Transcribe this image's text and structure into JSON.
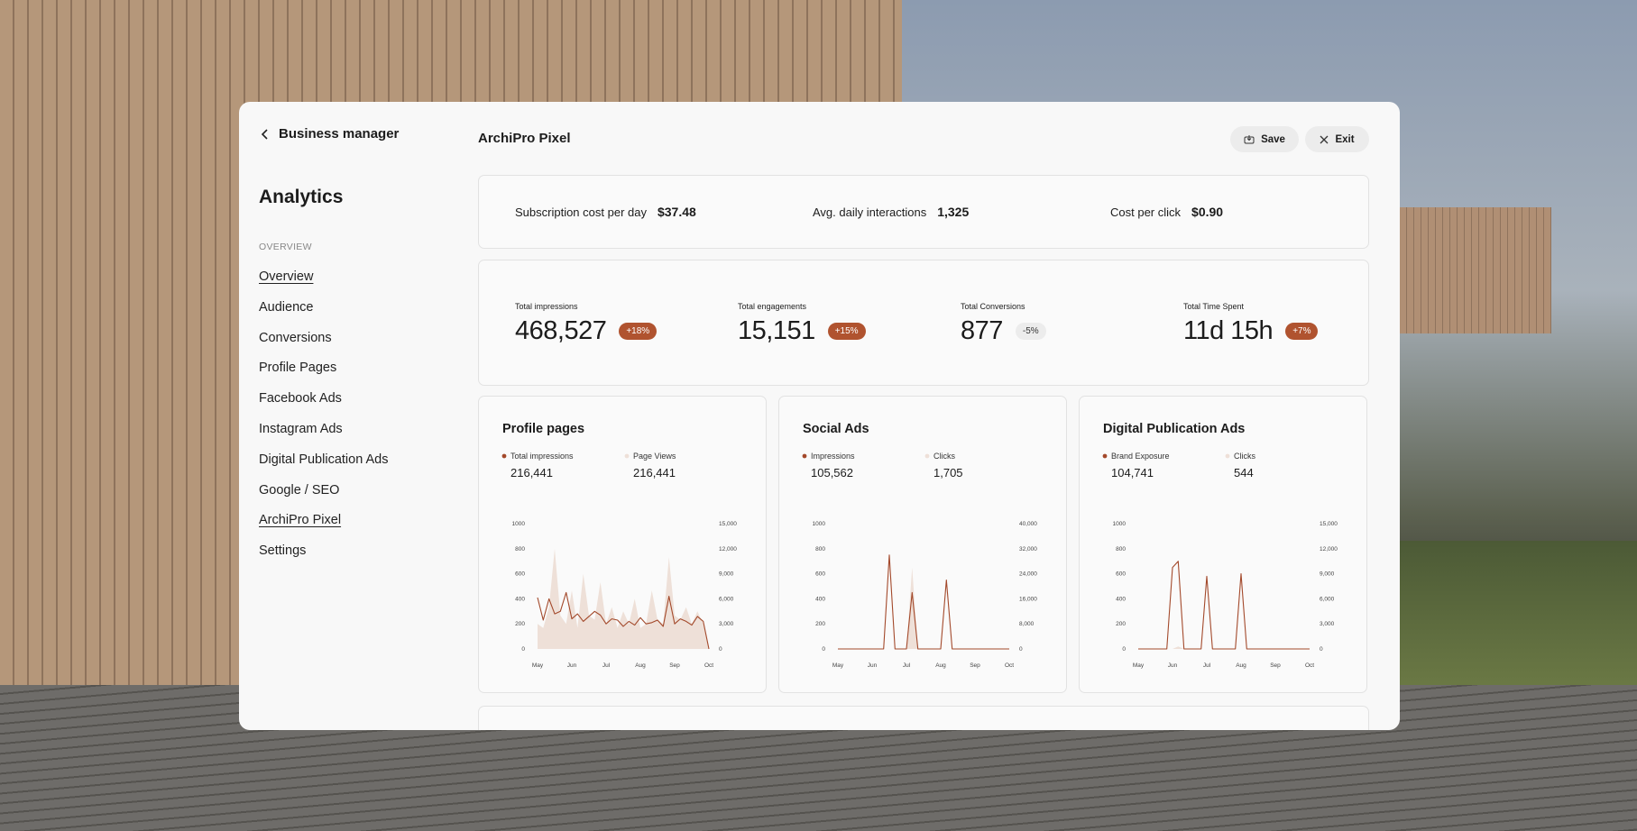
{
  "sidebar": {
    "back": "Business manager",
    "title": "Analytics",
    "section": "OVERVIEW",
    "nav": [
      {
        "label": "Overview",
        "underlined": true
      },
      {
        "label": "Audience",
        "underlined": false
      },
      {
        "label": "Conversions",
        "underlined": false
      },
      {
        "label": "Profile Pages",
        "underlined": false
      },
      {
        "label": "Facebook Ads",
        "underlined": false
      },
      {
        "label": "Instagram Ads",
        "underlined": false
      },
      {
        "label": "Digital Publication Ads",
        "underlined": false
      },
      {
        "label": "Google / SEO",
        "underlined": false
      },
      {
        "label": "ArchiPro Pixel",
        "underlined": true
      },
      {
        "label": "Settings",
        "underlined": false
      }
    ]
  },
  "header": {
    "title": "ArchiPro Pixel",
    "save": "Save",
    "exit": "Exit"
  },
  "stats": [
    {
      "label": "Subscription cost per day",
      "value": "$37.48"
    },
    {
      "label": "Avg. daily interactions",
      "value": "1,325"
    },
    {
      "label": "Cost per click",
      "value": "$0.90"
    }
  ],
  "kpis": [
    {
      "label": "Total impressions",
      "value": "468,527",
      "change": "+18%",
      "highlight": true
    },
    {
      "label": "Total engagements",
      "value": "15,151",
      "change": "+15%",
      "highlight": true
    },
    {
      "label": "Total Conversions",
      "value": "877",
      "change": "-5%",
      "highlight": false
    },
    {
      "label": "Total Time Spent",
      "value": "11d 15h",
      "change": "+7%",
      "highlight": true
    }
  ],
  "chart_data": [
    {
      "type": "line",
      "title": "Profile pages",
      "x": [
        0,
        5,
        10,
        15,
        20,
        25,
        30,
        35,
        40,
        45,
        50,
        55,
        60,
        65,
        70,
        75,
        80,
        85,
        90,
        95,
        100,
        105,
        110,
        115,
        120,
        125,
        130,
        135,
        140,
        145,
        150
      ],
      "xlim": [
        0,
        150
      ],
      "xticks": [
        {
          "value": 0,
          "label": "May"
        },
        {
          "value": 30,
          "label": "Jun"
        },
        {
          "value": 60,
          "label": "Jul"
        },
        {
          "value": 90,
          "label": "Aug"
        },
        {
          "value": 120,
          "label": "Sep"
        },
        {
          "value": 150,
          "label": "Oct"
        }
      ],
      "ylim": [
        0,
        1000
      ],
      "yticks": [
        0,
        200,
        400,
        600,
        800,
        1000
      ],
      "y2lim": [
        0,
        15000
      ],
      "y2ticks": [
        0,
        {
          "value": 3000,
          "label": "3,000"
        },
        {
          "value": 6000,
          "label": "6,000"
        },
        {
          "value": 9000,
          "label": "9,000"
        },
        {
          "value": 12000,
          "label": "12,000"
        },
        {
          "value": 15000,
          "label": "15,000"
        }
      ],
      "series": [
        {
          "name": "Total impressions",
          "total": "216,441",
          "color": "#a3492b",
          "values": [
            410,
            230,
            400,
            280,
            300,
            450,
            240,
            280,
            220,
            260,
            300,
            270,
            200,
            240,
            230,
            180,
            220,
            190,
            250,
            200,
            210,
            230,
            180,
            420,
            200,
            240,
            220,
            190,
            260,
            220,
            0
          ]
        },
        {
          "name": "Page Views",
          "total": "216,441",
          "color": "#eee0d8",
          "axis": "y2",
          "fill": true,
          "values": [
            3000,
            2500,
            5000,
            12000,
            4000,
            3000,
            7000,
            2500,
            9000,
            4000,
            3500,
            8000,
            3000,
            5000,
            2500,
            4500,
            3000,
            6000,
            2500,
            3000,
            7000,
            3500,
            3000,
            11000,
            4000,
            3500,
            5000,
            3000,
            4500,
            3000,
            0
          ]
        }
      ]
    },
    {
      "type": "line",
      "title": "Social Ads",
      "x": [
        0,
        5,
        10,
        15,
        20,
        25,
        30,
        35,
        40,
        45,
        50,
        55,
        60,
        65,
        70,
        75,
        80,
        85,
        90,
        95,
        100,
        105,
        110,
        115,
        120,
        125,
        130,
        135,
        140,
        145,
        150
      ],
      "xlim": [
        0,
        150
      ],
      "xticks": [
        {
          "value": 0,
          "label": "May"
        },
        {
          "value": 30,
          "label": "Jun"
        },
        {
          "value": 60,
          "label": "Jul"
        },
        {
          "value": 90,
          "label": "Aug"
        },
        {
          "value": 120,
          "label": "Sep"
        },
        {
          "value": 150,
          "label": "Oct"
        }
      ],
      "ylim": [
        0,
        1000
      ],
      "yticks": [
        0,
        200,
        400,
        600,
        800,
        1000
      ],
      "y2lim": [
        0,
        40000
      ],
      "y2ticks": [
        0,
        {
          "value": 8000,
          "label": "8,000"
        },
        {
          "value": 16000,
          "label": "16,000"
        },
        {
          "value": 24000,
          "label": "24,000"
        },
        {
          "value": 32000,
          "label": "32,000"
        },
        {
          "value": 40000,
          "label": "40,000"
        }
      ],
      "series": [
        {
          "name": "Impressions",
          "total": "105,562",
          "color": "#a3492b",
          "values": [
            0,
            0,
            0,
            0,
            0,
            0,
            0,
            0,
            0,
            750,
            0,
            0,
            0,
            450,
            0,
            0,
            0,
            0,
            0,
            550,
            0,
            0,
            0,
            0,
            0,
            0,
            0,
            0,
            0,
            0,
            0
          ]
        },
        {
          "name": "Clicks",
          "total": "1,705",
          "color": "#eee0d8",
          "axis": "y2",
          "fill": true,
          "values": [
            0,
            0,
            0,
            0,
            0,
            0,
            0,
            0,
            0,
            0,
            0,
            0,
            0,
            26000,
            0,
            0,
            0,
            0,
            0,
            0,
            0,
            0,
            0,
            0,
            0,
            0,
            0,
            0,
            0,
            0,
            0
          ]
        }
      ]
    },
    {
      "type": "line",
      "title": "Digital Publication Ads",
      "x": [
        0,
        5,
        10,
        15,
        20,
        25,
        30,
        35,
        40,
        45,
        50,
        55,
        60,
        65,
        70,
        75,
        80,
        85,
        90,
        95,
        100,
        105,
        110,
        115,
        120,
        125,
        130,
        135,
        140,
        145,
        150
      ],
      "xlim": [
        0,
        150
      ],
      "xticks": [
        {
          "value": 0,
          "label": "May"
        },
        {
          "value": 30,
          "label": "Jun"
        },
        {
          "value": 60,
          "label": "Jul"
        },
        {
          "value": 90,
          "label": "Aug"
        },
        {
          "value": 120,
          "label": "Sep"
        },
        {
          "value": 150,
          "label": "Oct"
        }
      ],
      "ylim": [
        0,
        1000
      ],
      "yticks": [
        0,
        200,
        400,
        600,
        800,
        1000
      ],
      "y2lim": [
        0,
        15000
      ],
      "y2ticks": [
        0,
        {
          "value": 3000,
          "label": "3,000"
        },
        {
          "value": 6000,
          "label": "6,000"
        },
        {
          "value": 9000,
          "label": "9,000"
        },
        {
          "value": 12000,
          "label": "12,000"
        },
        {
          "value": 15000,
          "label": "15,000"
        }
      ],
      "series": [
        {
          "name": "Brand Exposure",
          "total": "104,741",
          "color": "#a3492b",
          "values": [
            0,
            0,
            0,
            0,
            0,
            0,
            650,
            700,
            0,
            0,
            0,
            0,
            580,
            0,
            0,
            0,
            0,
            0,
            600,
            0,
            0,
            0,
            0,
            0,
            0,
            0,
            0,
            0,
            0,
            0,
            0
          ]
        },
        {
          "name": "Clicks",
          "total": "544",
          "color": "#eee0d8",
          "axis": "y2",
          "fill": true,
          "values": [
            0,
            0,
            0,
            0,
            0,
            0,
            0,
            300,
            0,
            0,
            0,
            0,
            0,
            0,
            0,
            0,
            0,
            0,
            0,
            0,
            0,
            0,
            0,
            0,
            0,
            0,
            0,
            0,
            0,
            0,
            0
          ]
        }
      ]
    }
  ]
}
